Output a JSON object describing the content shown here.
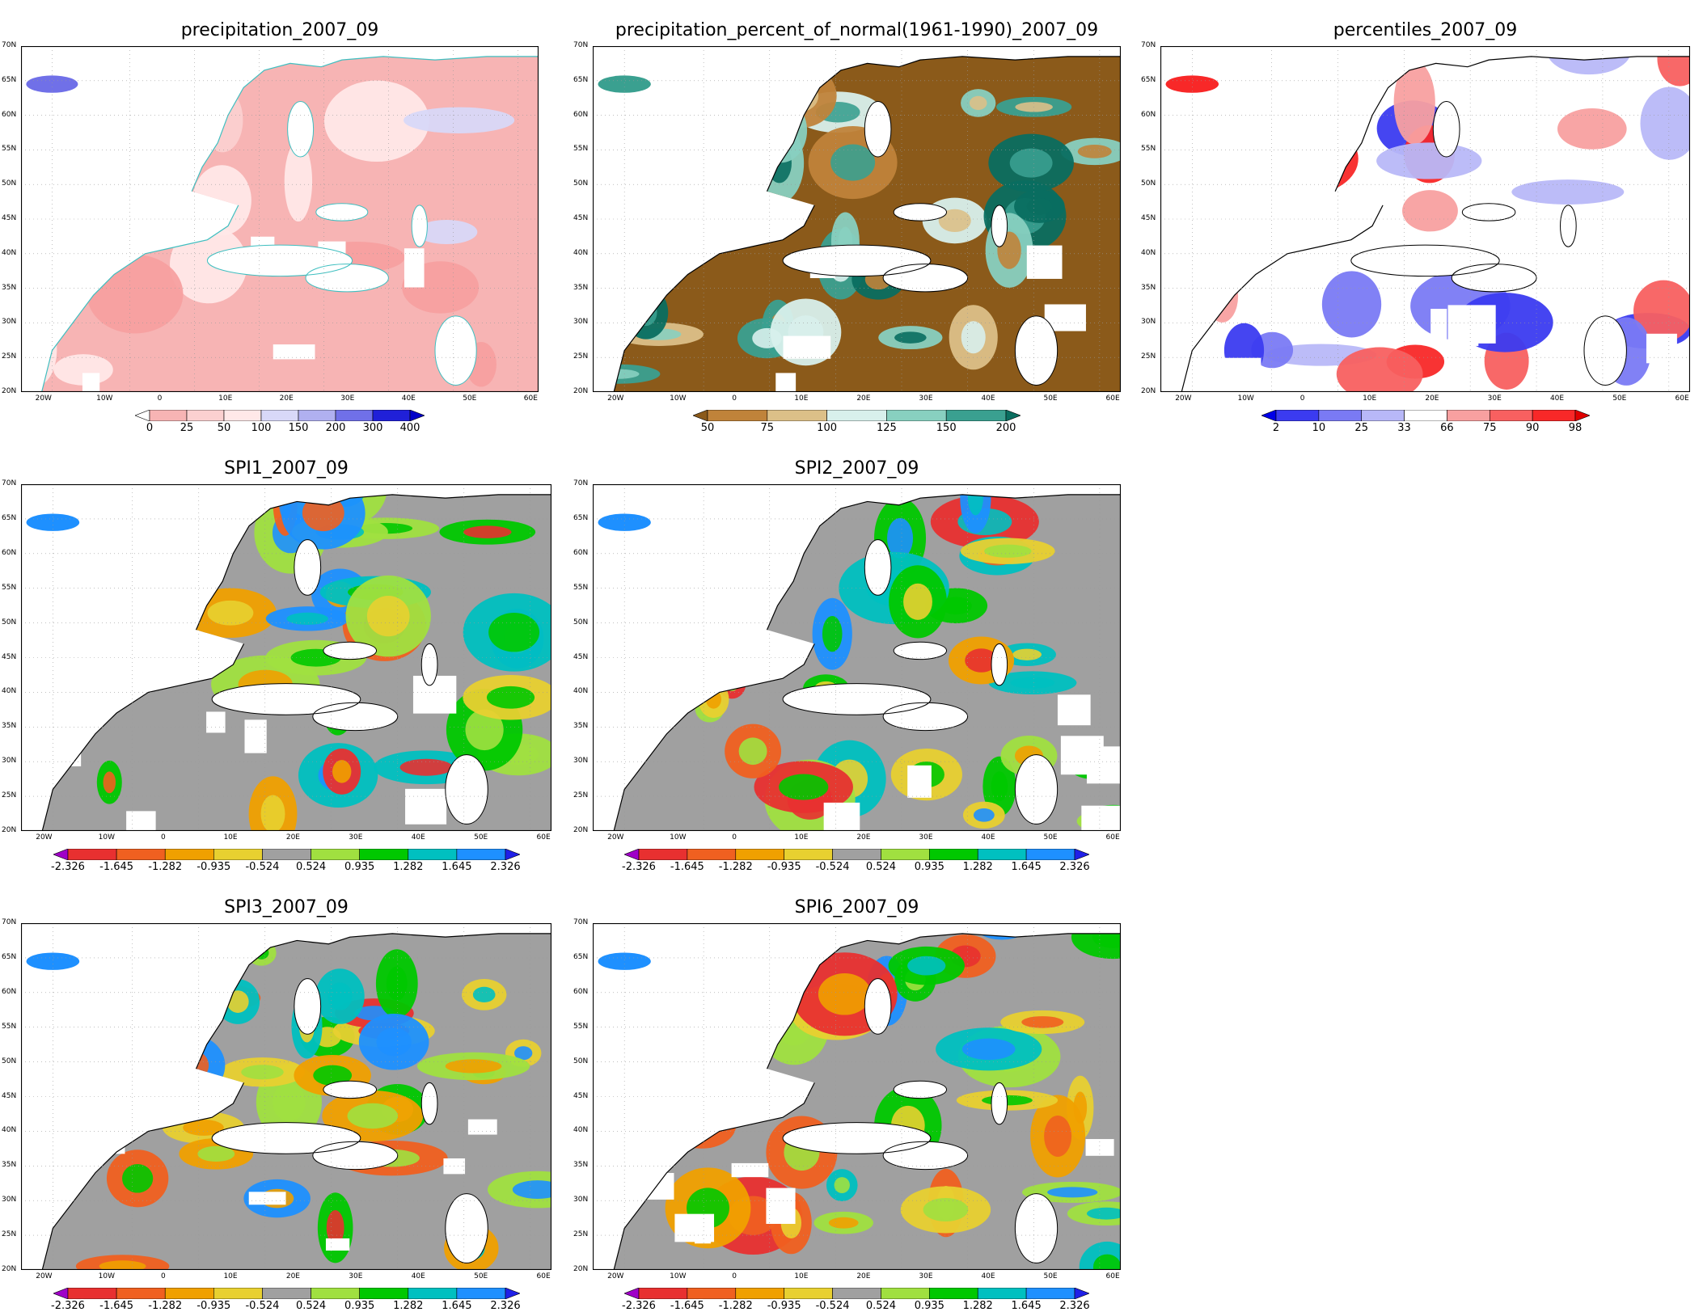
{
  "colors": {
    "grey": "#a0a0a0",
    "border_teal": "#3fbfc0",
    "border_black": "#000000"
  },
  "panels": [
    {
      "id": "precip",
      "title": "precipitation_2007_09",
      "colorbar": {
        "labels": [
          "0",
          "25",
          "50",
          "100",
          "150",
          "200",
          "300",
          "400"
        ],
        "colors": [
          "#ffffff",
          "#f7b4b4",
          "#fbd0d0",
          "#ffe8e8",
          "#d8d8f8",
          "#b0b0f0",
          "#7070e8",
          "#2020d8",
          "#0000c8"
        ],
        "extend": "max"
      }
    },
    {
      "id": "pct",
      "title": "precipitation_percent_of_normal(1961-1990)_2007_09",
      "colorbar": {
        "labels": [
          "50",
          "75",
          "100",
          "125",
          "150",
          "200"
        ],
        "colors": [
          "#8b5a1a",
          "#c0833a",
          "#dcc088",
          "#d8f0ec",
          "#88d0c0",
          "#3aa090",
          "#0a6e60"
        ],
        "extend": "both"
      }
    },
    {
      "id": "perc",
      "title": "percentiles_2007_09",
      "colorbar": {
        "labels": [
          "2",
          "10",
          "25",
          "33",
          "66",
          "75",
          "90",
          "98"
        ],
        "colors": [
          "#0000e8",
          "#3b3bf0",
          "#7a7af4",
          "#b8b8f8",
          "#ffffff",
          "#f8a0a0",
          "#f86060",
          "#f82828",
          "#e00000"
        ],
        "extend": "both"
      }
    },
    {
      "id": "spi1",
      "title": "SPI1_2007_09",
      "colorbar": {
        "labels": [
          "-2.326",
          "-1.645",
          "-1.282",
          "-0.935",
          "-0.524",
          "0.524",
          "0.935",
          "1.282",
          "1.645",
          "2.326"
        ],
        "colors": [
          "#a000c8",
          "#e83030",
          "#f06020",
          "#f0a000",
          "#e8d030",
          "#a0a0a0",
          "#a0e040",
          "#00c800",
          "#00c0c0",
          "#1e90ff",
          "#2020e8"
        ],
        "extend": "both"
      }
    },
    {
      "id": "spi2",
      "title": "SPI2_2007_09",
      "colorbar": {
        "labels": [
          "-2.326",
          "-1.645",
          "-1.282",
          "-0.935",
          "-0.524",
          "0.524",
          "0.935",
          "1.282",
          "1.645",
          "2.326"
        ],
        "colors": [
          "#a000c8",
          "#e83030",
          "#f06020",
          "#f0a000",
          "#e8d030",
          "#a0a0a0",
          "#a0e040",
          "#00c800",
          "#00c0c0",
          "#1e90ff",
          "#2020e8"
        ],
        "extend": "both"
      }
    },
    {
      "id": "spi3",
      "title": "SPI3_2007_09",
      "colorbar": {
        "labels": [
          "-2.326",
          "-1.645",
          "-1.282",
          "-0.935",
          "-0.524",
          "0.524",
          "0.935",
          "1.282",
          "1.645",
          "2.326"
        ],
        "colors": [
          "#a000c8",
          "#e83030",
          "#f06020",
          "#f0a000",
          "#e8d030",
          "#a0a0a0",
          "#a0e040",
          "#00c800",
          "#00c0c0",
          "#1e90ff",
          "#2020e8"
        ],
        "extend": "both"
      }
    },
    {
      "id": "spi6",
      "title": "SPI6_2007_09",
      "colorbar": {
        "labels": [
          "-2.326",
          "-1.645",
          "-1.282",
          "-0.935",
          "-0.524",
          "0.524",
          "0.935",
          "1.282",
          "1.645",
          "2.326"
        ],
        "colors": [
          "#a000c8",
          "#e83030",
          "#f06020",
          "#f0a000",
          "#e8d030",
          "#a0a0a0",
          "#a0e040",
          "#00c800",
          "#00c0c0",
          "#1e90ff",
          "#2020e8"
        ],
        "extend": "both"
      }
    }
  ],
  "axes": {
    "lat_labels": [
      "70N",
      "65N",
      "60N",
      "55N",
      "50N",
      "45N",
      "40N",
      "35N",
      "30N",
      "25N",
      "20N"
    ],
    "lon_labels": [
      "20W",
      "10W",
      "0",
      "10E",
      "20E",
      "30E",
      "40E",
      "50E",
      "60E"
    ]
  }
}
